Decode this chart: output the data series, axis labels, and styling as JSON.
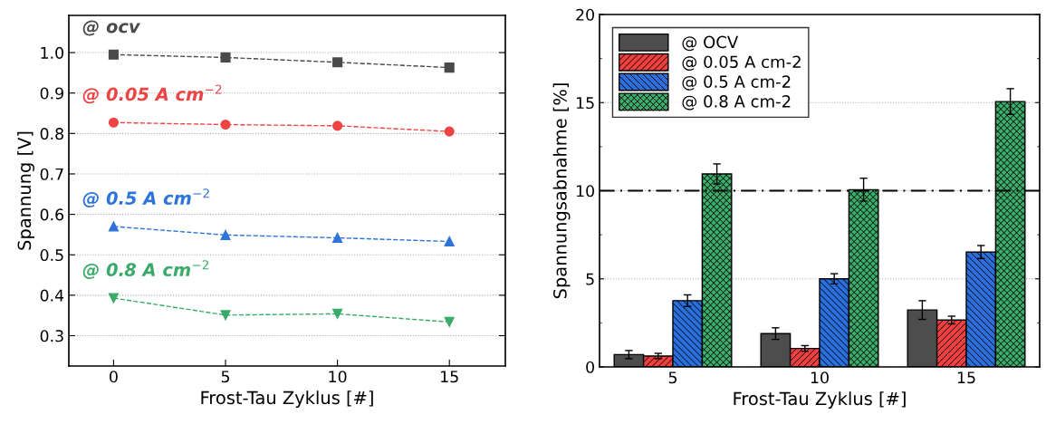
{
  "chart_data": [
    {
      "type": "line",
      "xlabel": "Frost-Tau Zyklus [#]",
      "ylabel": "Spannung [V]",
      "x": [
        0,
        5,
        10,
        15
      ],
      "xlim": [
        -2,
        17.5
      ],
      "xticks": [
        0,
        5,
        10,
        15
      ],
      "ylim": [
        0.225,
        1.092
      ],
      "yticks": [
        0.3,
        0.4,
        0.5,
        0.6,
        0.7,
        0.8,
        0.9,
        {
          "value": 1,
          "label": "1.0"
        }
      ],
      "grid": "y",
      "legend": false,
      "line_style": "dashed",
      "series": [
        {
          "name": "@ ocv",
          "color": "#4a4a4a",
          "marker": "square",
          "values": [
            0.995,
            0.988,
            0.976,
            0.963
          ]
        },
        {
          "name": "@ 0.05 A cm$^{−2}$",
          "color": "#ef4444",
          "marker": "circle",
          "values": [
            0.827,
            0.822,
            0.819,
            0.805
          ]
        },
        {
          "name": "@ 0.5 A cm$^{−2}$",
          "color": "#2d74da",
          "marker": "triangle",
          "values": [
            0.57,
            0.549,
            0.542,
            0.533
          ]
        },
        {
          "name": "@ 0.8 A cm$^{−2}$",
          "color": "#3aaa6a",
          "marker": "triangle_down",
          "values": [
            0.393,
            0.351,
            0.354,
            0.334
          ]
        }
      ]
    },
    {
      "type": "bar",
      "xlabel": "Frost-Tau Zyklus [#]",
      "ylabel": "Spannungsabnahme [%]",
      "categories": [
        "5",
        "10",
        "15"
      ],
      "ylim": [
        0,
        20
      ],
      "yticks": [
        0,
        5,
        10,
        15,
        20
      ],
      "grid": "y",
      "legend": "top left",
      "ref_lines": [
        {
          "axis": "y",
          "value": 10,
          "line_style": "dashdot",
          "color": "#000000"
        }
      ],
      "series": [
        {
          "name": "@ OCV",
          "color": "#4d4d4d",
          "values": [
            0.7,
            1.89,
            3.23
          ],
          "errors": [
            0.23,
            0.33,
            0.53
          ]
        },
        {
          "name": "@ 0.05 A cm-2",
          "color": "#f04040",
          "values": [
            0.62,
            1.05,
            2.66
          ],
          "errors": [
            0.15,
            0.16,
            0.22
          ]
        },
        {
          "name": "@ 0.5 A cm-2",
          "color": "#2a6fdb",
          "values": [
            3.76,
            5.0,
            6.52
          ],
          "errors": [
            0.33,
            0.29,
            0.37
          ]
        },
        {
          "name": "@ 0.8 A cm-2",
          "color": "#3cad6a",
          "values": [
            10.95,
            10.06,
            15.06
          ],
          "errors": [
            0.57,
            0.65,
            0.73
          ]
        }
      ]
    }
  ]
}
